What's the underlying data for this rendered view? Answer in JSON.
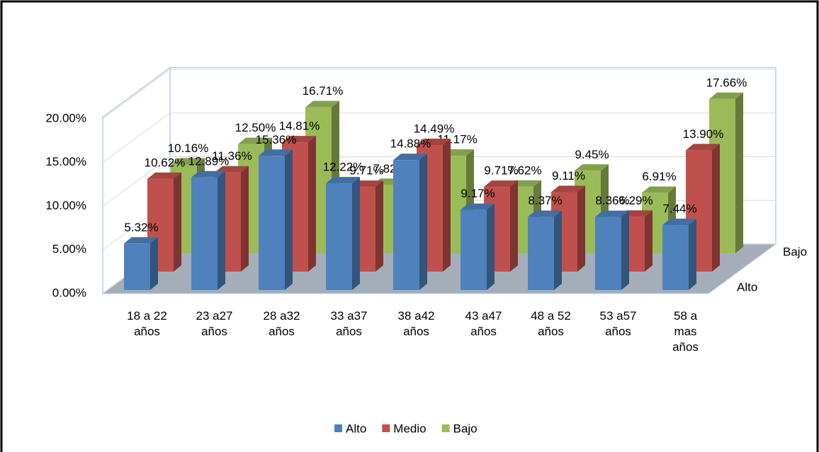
{
  "chart_data": {
    "type": "bar3d",
    "categories": [
      "18 a 22 años",
      "23 a27 años",
      "28 a32 años",
      "33 a37 años",
      "38 a42 años",
      "43 a47 años",
      "48 a 52 años",
      "53 a57 años",
      "58 a mas años"
    ],
    "series": [
      {
        "name": "Alto",
        "color": "#4f81bd",
        "values": [
          5.32,
          12.89,
          15.36,
          12.22,
          14.88,
          9.17,
          8.37,
          8.36,
          7.44
        ],
        "value_labels": [
          "5.32%",
          "12.89%",
          "15.36%",
          "12.22%",
          "14.88%",
          "9.17%",
          "8.37%",
          "8.36%",
          "7.44%"
        ]
      },
      {
        "name": "Medio",
        "color": "#c0504d",
        "values": [
          10.62,
          11.36,
          14.81,
          9.71,
          14.49,
          9.71,
          9.11,
          6.29,
          13.9
        ],
        "value_labels": [
          "10.62%",
          "11.36%",
          "14.81%",
          "9.71%",
          "14.49%",
          "9.71%",
          "9.11%",
          "6.29%",
          "13.90%"
        ]
      },
      {
        "name": "Bajo",
        "color": "#9bbb59",
        "values": [
          10.16,
          12.5,
          16.71,
          7.82,
          11.17,
          7.62,
          9.45,
          6.91,
          17.66
        ],
        "value_labels": [
          "10.16%",
          "12.50%",
          "16.71%",
          "7.82%",
          "11.17%",
          "7.62%",
          "9.45%",
          "6.91%",
          "17.66%"
        ]
      }
    ],
    "ylim": [
      0,
      20
    ],
    "yticks": [
      {
        "value": 0,
        "label": "0.00%"
      },
      {
        "value": 5,
        "label": "5.00%"
      },
      {
        "value": 10,
        "label": "10.00%"
      },
      {
        "value": 15,
        "label": "15.00%"
      },
      {
        "value": 20,
        "label": "20.00%"
      }
    ],
    "grid": true,
    "legend": "bottom"
  }
}
